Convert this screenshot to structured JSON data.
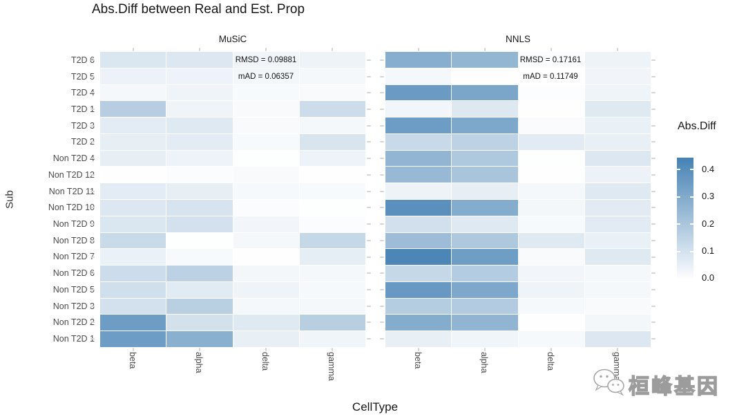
{
  "title": "Abs.Diff between Real and Est. Prop",
  "axes": {
    "y_title": "Sub",
    "x_title": "CellType"
  },
  "legend": {
    "title": "Abs.Diff",
    "tick_labels": [
      "0.4",
      "0.3",
      "0.2",
      "0.1",
      "0.0"
    ],
    "low_color": "#FFFFFF",
    "high_color": "#4682B4"
  },
  "watermark": {
    "text": "桓峰基因",
    "icon": "wechat-icon"
  },
  "chart_data": {
    "type": "heatmap",
    "title": "Abs.Diff between Real and Est. Prop",
    "xlabel": "CellType",
    "ylabel": "Sub",
    "columns": [
      "beta",
      "alpha",
      "delta",
      "gamma"
    ],
    "rows": [
      "T2D 6",
      "T2D 5",
      "T2D 4",
      "T2D 1",
      "T2D 3",
      "T2D 2",
      "Non T2D 4",
      "Non T2D 12",
      "Non T2D 11",
      "Non T2D 10",
      "Non T2D 9",
      "Non T2D 8",
      "Non T2D 7",
      "Non T2D 6",
      "Non T2D 5",
      "Non T2D 3",
      "Non T2D 2",
      "Non T2D 1"
    ],
    "color_scale": {
      "low": "#FFFFFF",
      "high": "#4682B4",
      "domain": [
        0,
        0.445
      ],
      "legend_position": "right"
    },
    "facets": [
      {
        "label": "MuSiC",
        "rmsd_label": "RMSD = 0.09881",
        "mad_label": "mAD = 0.06357",
        "values": [
          [
            0.087,
            0.084,
            0.036,
            0.041
          ],
          [
            0.046,
            0.043,
            0.029,
            0.024
          ],
          [
            0.024,
            0.038,
            0.019,
            0.017
          ],
          [
            0.173,
            0.038,
            0.017,
            0.123
          ],
          [
            0.067,
            0.079,
            0.017,
            0.024
          ],
          [
            0.058,
            0.067,
            0.019,
            0.094
          ],
          [
            0.058,
            0.043,
            0.005,
            0.043
          ],
          [
            0.002,
            0.012,
            0.017,
            0.002
          ],
          [
            0.068,
            0.058,
            0.022,
            0.019
          ],
          [
            0.085,
            0.096,
            0.01,
            0.005
          ],
          [
            0.089,
            0.108,
            0.032,
            0.012
          ],
          [
            0.13,
            0.005,
            0.026,
            0.14
          ],
          [
            0.048,
            0.019,
            0.002,
            0.06
          ],
          [
            0.123,
            0.161,
            0.029,
            0.026
          ],
          [
            0.115,
            0.072,
            0.038,
            0.022
          ],
          [
            0.108,
            0.168,
            0.026,
            0.026
          ],
          [
            0.351,
            0.106,
            0.077,
            0.171
          ],
          [
            0.351,
            0.281,
            0.055,
            0.036
          ]
        ]
      },
      {
        "label": "NNLS",
        "rmsd_label": "RMSD = 0.17161",
        "mad_label": "mAD = 0.11749",
        "values": [
          [
            0.289,
            0.26,
            0.01,
            0.041
          ],
          [
            0.024,
            0.002,
            0.002,
            0.034
          ],
          [
            0.356,
            0.318,
            0.007,
            0.038
          ],
          [
            0.031,
            0.082,
            0.002,
            0.079
          ],
          [
            0.351,
            0.31,
            0.014,
            0.051
          ],
          [
            0.132,
            0.159,
            0.07,
            0.055
          ],
          [
            0.262,
            0.195,
            0.005,
            0.084
          ],
          [
            0.25,
            0.207,
            0.002,
            0.046
          ],
          [
            0.041,
            0.058,
            0.026,
            0.077
          ],
          [
            0.394,
            0.296,
            0.029,
            0.07
          ],
          [
            0.111,
            0.077,
            0.019,
            0.07
          ],
          [
            0.238,
            0.195,
            0.079,
            0.051
          ],
          [
            0.43,
            0.346,
            0.017,
            0.079
          ],
          [
            0.139,
            0.18,
            0.031,
            0.026
          ],
          [
            0.363,
            0.31,
            0.038,
            0.026
          ],
          [
            0.178,
            0.185,
            0.022,
            0.017
          ],
          [
            0.296,
            0.267,
            0.002,
            0.029
          ],
          [
            0.055,
            0.036,
            0.022,
            0.084
          ]
        ]
      }
    ]
  }
}
